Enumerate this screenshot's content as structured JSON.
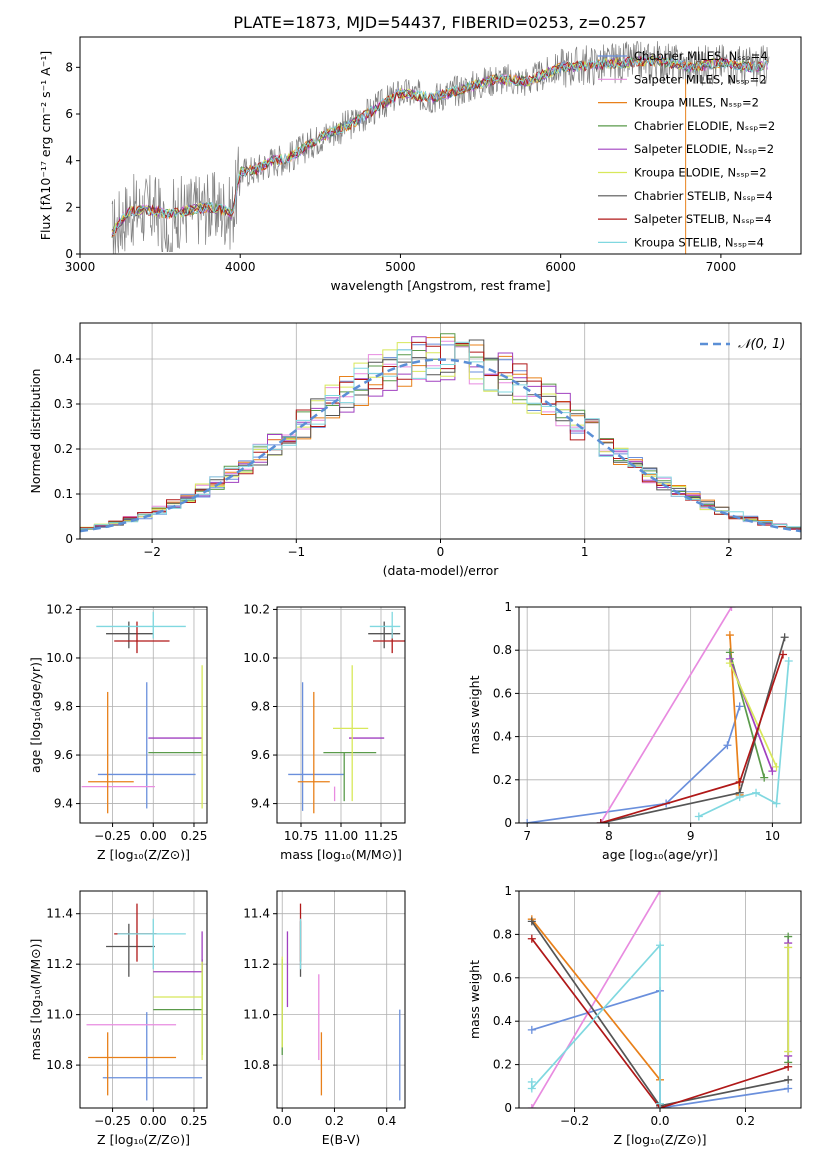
{
  "figure_title": "PLATE=1873, MJD=54437, FIBERID=0253, z=0.257",
  "colors": {
    "Chabrier MILES": "#6a8fdc",
    "Salpeter MILES": "#e88be0",
    "Kroupa MILES": "#e8801a",
    "Chabrier ELODIE": "#5a9a4a",
    "Salpeter ELODIE": "#a040c0",
    "Kroupa ELODIE": "#d8e85a",
    "Chabrier STELIB": "#555555",
    "Salpeter STELIB": "#b01818",
    "Kroupa STELIB": "#80d8e0",
    "data": "#808080",
    "normal": "#5b8fd6"
  },
  "chart_data": [
    {
      "id": "spectrum",
      "type": "line",
      "xlabel": "wavelength [Angstrom, rest frame]",
      "ylabel": "Flux [fλ10⁻¹⁷ erg cm⁻² s⁻¹ A⁻¹]",
      "xlim": [
        3000,
        7500
      ],
      "ylim": [
        0,
        9.3
      ],
      "xticks": [
        3000,
        4000,
        5000,
        6000,
        7000
      ],
      "yticks": [
        0,
        2,
        4,
        6,
        8
      ],
      "grid": false,
      "legend": "top-right",
      "continuum": {
        "x": [
          3200,
          3300,
          3400,
          3500,
          3550,
          3700,
          3800,
          3900,
          3950,
          4000,
          4100,
          4200,
          4300,
          4500,
          4700,
          5000,
          5200,
          5400,
          5600,
          5800,
          6000,
          6200,
          6400,
          6600,
          6800,
          7000,
          7200,
          7300
        ],
        "y": [
          0.9,
          1.8,
          1.9,
          1.8,
          1.7,
          1.9,
          2.0,
          1.9,
          1.7,
          3.5,
          3.6,
          4.0,
          4.1,
          5.0,
          5.6,
          6.9,
          6.7,
          7.1,
          7.5,
          7.4,
          8.0,
          8.1,
          8.2,
          8.3,
          8.0,
          8.2,
          8.0,
          8.1
        ]
      },
      "series": [
        {
          "name": "Chabrier MILES, Nₛₛₚ=4"
        },
        {
          "name": "Salpeter MILES, Nₛₛₚ=2"
        },
        {
          "name": "Kroupa MILES, Nₛₛₚ=2"
        },
        {
          "name": "Chabrier ELODIE, Nₛₛₚ=2"
        },
        {
          "name": "Salpeter ELODIE, Nₛₛₚ=2"
        },
        {
          "name": "Kroupa ELODIE, Nₛₛₚ=2"
        },
        {
          "name": "Chabrier STELIB, Nₛₛₚ=4"
        },
        {
          "name": "Salpeter STELIB, Nₛₛₚ=4"
        },
        {
          "name": "Kroupa STELIB, Nₛₛₚ=4"
        }
      ]
    },
    {
      "id": "residuals",
      "type": "line",
      "xlabel": "(data-model)/error",
      "ylabel": "Normed distribution",
      "xlim": [
        -2.5,
        2.5
      ],
      "ylim": [
        0,
        0.48
      ],
      "xticks": [
        -2,
        -1,
        0,
        1,
        2
      ],
      "yticks": [
        0.0,
        0.1,
        0.2,
        0.3,
        0.4
      ],
      "grid": true,
      "legend": "top-right",
      "normal_label": "𝒩(0, 1)",
      "normal": {
        "mean": 0,
        "sigma": 1
      }
    },
    {
      "id": "age_vs_Z",
      "type": "scatter",
      "xlabel": "Z [log₁₀(Z/Z⊙)]",
      "ylabel": "age  [log₁₀(age/yr)]",
      "xlim": [
        -0.45,
        0.33
      ],
      "ylim": [
        9.32,
        10.21
      ],
      "xticks": [
        -0.25,
        0.0,
        0.25
      ],
      "xticklabels": [
        "−0.25",
        "0.00",
        "0.25"
      ],
      "yticks": [
        9.4,
        9.6,
        9.8,
        10.0,
        10.2
      ],
      "yticklabels": [
        "9.4",
        "9.6",
        "9.8",
        "10.0",
        "10.2"
      ],
      "grid": true,
      "points": [
        {
          "series": "Chabrier MILES",
          "x": -0.04,
          "xerr": [
            0.3,
            0.3
          ],
          "y": 9.52,
          "yerr": [
            0.14,
            0.38
          ]
        },
        {
          "series": "Salpeter MILES",
          "x": -0.04,
          "xerr": [
            0.4,
            0.05
          ],
          "y": 9.47,
          "yerr": [
            0.0,
            0.0
          ]
        },
        {
          "series": "Kroupa MILES",
          "x": -0.28,
          "xerr": [
            0.12,
            0.16
          ],
          "y": 9.49,
          "yerr": [
            0.13,
            0.37
          ]
        },
        {
          "series": "Chabrier ELODIE",
          "x": 0.1,
          "xerr": [
            0.13,
            0.2
          ],
          "y": 9.61,
          "yerr": [
            0.0,
            0.0
          ]
        },
        {
          "series": "Salpeter ELODIE",
          "x": 0.15,
          "xerr": [
            0.18,
            0.15
          ],
          "y": 9.67,
          "yerr": [
            0.0,
            0.0
          ]
        },
        {
          "series": "Kroupa ELODIE",
          "x": 0.3,
          "xerr": [
            0.0,
            0.0
          ],
          "y": 9.71,
          "yerr": [
            0.33,
            0.26
          ]
        },
        {
          "series": "Chabrier STELIB",
          "x": -0.15,
          "xerr": [
            0.14,
            0.15
          ],
          "y": 10.1,
          "yerr": [
            0.06,
            0.05
          ]
        },
        {
          "series": "Salpeter STELIB",
          "x": -0.1,
          "xerr": [
            0.14,
            0.2
          ],
          "y": 10.07,
          "yerr": [
            0.05,
            0.08
          ]
        },
        {
          "series": "Kroupa STELIB",
          "x": 0.0,
          "xerr": [
            0.35,
            0.2
          ],
          "y": 10.13,
          "yerr": [
            0.05,
            0.06
          ]
        }
      ]
    },
    {
      "id": "age_vs_mass",
      "type": "scatter",
      "xlabel": "mass [log₁₀(M/M⊙)]",
      "ylabel": "",
      "xlim": [
        10.6,
        11.4
      ],
      "ylim": [
        9.32,
        10.21
      ],
      "xticks": [
        10.75,
        11.0,
        11.25
      ],
      "xticklabels": [
        "10.75",
        "11.00",
        "11.25"
      ],
      "yticks": [
        9.4,
        9.6,
        9.8,
        10.0,
        10.2
      ],
      "yticklabels": [
        "9.4",
        "9.6",
        "9.8",
        "10.0",
        "10.2"
      ],
      "grid": true,
      "points": [
        {
          "series": "Chabrier MILES",
          "x": 10.76,
          "xerr": [
            0.09,
            0.26
          ],
          "y": 9.52,
          "yerr": [
            0.15,
            0.38
          ]
        },
        {
          "series": "Salpeter MILES",
          "x": 10.96,
          "xerr": [
            0.0,
            0.0
          ],
          "y": 9.47,
          "yerr": [
            0.06,
            0.0
          ]
        },
        {
          "series": "Kroupa MILES",
          "x": 10.83,
          "xerr": [
            0.1,
            0.1
          ],
          "y": 9.49,
          "yerr": [
            0.13,
            0.37
          ]
        },
        {
          "series": "Chabrier ELODIE",
          "x": 11.02,
          "xerr": [
            0.13,
            0.2
          ],
          "y": 9.61,
          "yerr": [
            0.2,
            0.0
          ]
        },
        {
          "series": "Salpeter ELODIE",
          "x": 11.17,
          "xerr": [
            0.12,
            0.1
          ],
          "y": 9.67,
          "yerr": [
            0.0,
            0.0
          ]
        },
        {
          "series": "Kroupa ELODIE",
          "x": 11.07,
          "xerr": [
            0.12,
            0.1
          ],
          "y": 9.71,
          "yerr": [
            0.3,
            0.26
          ]
        },
        {
          "series": "Chabrier STELIB",
          "x": 11.27,
          "xerr": [
            0.1,
            0.1
          ],
          "y": 10.1,
          "yerr": [
            0.06,
            0.05
          ]
        },
        {
          "series": "Salpeter STELIB",
          "x": 11.32,
          "xerr": [
            0.12,
            0.12
          ],
          "y": 10.07,
          "yerr": [
            0.05,
            0.05
          ]
        },
        {
          "series": "Kroupa STELIB",
          "x": 11.32,
          "xerr": [
            0.14,
            0.05
          ],
          "y": 10.13,
          "yerr": [
            0.05,
            0.06
          ]
        }
      ]
    },
    {
      "id": "weight_vs_age",
      "type": "line",
      "xlabel": "age  [log₁₀(age/yr)]",
      "ylabel": "mass weight",
      "xlim": [
        6.9,
        10.35
      ],
      "ylim": [
        0,
        1
      ],
      "xticks": [
        7,
        8,
        9,
        10
      ],
      "yticks": [
        0.0,
        0.2,
        0.4,
        0.6,
        0.8,
        1.0
      ],
      "grid": true,
      "series": [
        {
          "series": "Chabrier MILES",
          "x": [
            7.0,
            8.7,
            9.45,
            9.6
          ],
          "y": [
            0.0,
            0.09,
            0.36,
            0.54
          ]
        },
        {
          "series": "Salpeter MILES",
          "x": [
            7.9,
            9.5
          ],
          "y": [
            0.0,
            1.0
          ]
        },
        {
          "series": "Kroupa MILES",
          "x": [
            9.48,
            9.6
          ],
          "y": [
            0.87,
            0.13
          ]
        },
        {
          "series": "Chabrier ELODIE",
          "x": [
            9.48,
            9.9
          ],
          "y": [
            0.79,
            0.21
          ]
        },
        {
          "series": "Salpeter ELODIE",
          "x": [
            9.48,
            10.0
          ],
          "y": [
            0.76,
            0.24
          ]
        },
        {
          "series": "Kroupa ELODIE",
          "x": [
            9.48,
            10.05
          ],
          "y": [
            0.74,
            0.26
          ]
        },
        {
          "series": "Chabrier STELIB",
          "x": [
            7.9,
            9.6,
            10.15
          ],
          "y": [
            0.0,
            0.14,
            0.86
          ]
        },
        {
          "series": "Salpeter STELIB",
          "x": [
            7.9,
            9.6,
            10.13
          ],
          "y": [
            0.0,
            0.19,
            0.78
          ]
        },
        {
          "series": "Kroupa STELIB",
          "x": [
            9.1,
            9.6,
            9.8,
            10.05,
            10.2
          ],
          "y": [
            0.03,
            0.12,
            0.14,
            0.09,
            0.75
          ]
        }
      ]
    },
    {
      "id": "mass_vs_Z",
      "type": "scatter",
      "xlabel": "Z [log₁₀(Z/Z⊙)]",
      "ylabel": "mass [log₁₀(M/M⊙)]",
      "xlim": [
        -0.45,
        0.33
      ],
      "ylim": [
        10.63,
        11.49
      ],
      "xticks": [
        -0.25,
        0.0,
        0.25
      ],
      "xticklabels": [
        "−0.25",
        "0.00",
        "0.25"
      ],
      "yticks": [
        10.8,
        11.0,
        11.2,
        11.4
      ],
      "yticklabels": [
        "10.8",
        "11.0",
        "11.2",
        "11.4"
      ],
      "grid": true,
      "points": [
        {
          "series": "Chabrier MILES",
          "x": -0.04,
          "xerr": [
            0.27,
            0.34
          ],
          "y": 10.75,
          "yerr": [
            0.09,
            0.26
          ]
        },
        {
          "series": "Salpeter MILES",
          "x": -0.15,
          "xerr": [
            0.26,
            0.29
          ],
          "y": 10.96,
          "yerr": [
            0.0,
            0.0
          ]
        },
        {
          "series": "Kroupa MILES",
          "x": -0.28,
          "xerr": [
            0.12,
            0.42
          ],
          "y": 10.83,
          "yerr": [
            0.15,
            0.1
          ]
        },
        {
          "series": "Chabrier ELODIE",
          "x": 0.3,
          "xerr": [
            0.3,
            0.0
          ],
          "y": 11.02,
          "yerr": [
            0.18,
            0.2
          ]
        },
        {
          "series": "Salpeter ELODIE",
          "x": 0.3,
          "xerr": [
            0.3,
            0.0
          ],
          "y": 11.17,
          "yerr": [
            0.0,
            0.16
          ]
        },
        {
          "series": "Kroupa ELODIE",
          "x": 0.3,
          "xerr": [
            0.3,
            0.0
          ],
          "y": 11.07,
          "yerr": [
            0.25,
            0.14
          ]
        },
        {
          "series": "Chabrier STELIB",
          "x": -0.15,
          "xerr": [
            0.14,
            0.16
          ],
          "y": 11.27,
          "yerr": [
            0.12,
            0.09
          ]
        },
        {
          "series": "Salpeter STELIB",
          "x": -0.1,
          "xerr": [
            0.14,
            0.12
          ],
          "y": 11.32,
          "yerr": [
            0.11,
            0.12
          ]
        },
        {
          "series": "Kroupa STELIB",
          "x": 0.0,
          "xerr": [
            0.22,
            0.2
          ],
          "y": 11.32,
          "yerr": [
            0.14,
            0.06
          ]
        }
      ]
    },
    {
      "id": "mass_vs_ebv",
      "type": "scatter",
      "xlabel": "E(B-V)",
      "ylabel": "",
      "xlim": [
        -0.02,
        0.47
      ],
      "ylim": [
        10.63,
        11.49
      ],
      "xticks": [
        0.0,
        0.2,
        0.4
      ],
      "xticklabels": [
        "0.0",
        "0.2",
        "0.4"
      ],
      "yticks": [
        10.8,
        11.0,
        11.2,
        11.4
      ],
      "yticklabels": [
        "10.8",
        "11.0",
        "11.2",
        "11.4"
      ],
      "grid": true,
      "points": [
        {
          "series": "Chabrier MILES",
          "x": 0.45,
          "xerr": [
            0.0,
            0.0
          ],
          "y": 10.75,
          "yerr": [
            0.09,
            0.27
          ]
        },
        {
          "series": "Salpeter MILES",
          "x": 0.14,
          "xerr": [
            0.0,
            0.0
          ],
          "y": 10.96,
          "yerr": [
            0.14,
            0.2
          ]
        },
        {
          "series": "Kroupa MILES",
          "x": 0.15,
          "xerr": [
            0.0,
            0.0
          ],
          "y": 10.83,
          "yerr": [
            0.15,
            0.1
          ]
        },
        {
          "series": "Chabrier ELODIE",
          "x": 0.0,
          "xerr": [
            0.0,
            0.0
          ],
          "y": 11.02,
          "yerr": [
            0.18,
            0.2
          ]
        },
        {
          "series": "Salpeter ELODIE",
          "x": 0.02,
          "xerr": [
            0.0,
            0.0
          ],
          "y": 11.17,
          "yerr": [
            0.14,
            0.16
          ]
        },
        {
          "series": "Kroupa ELODIE",
          "x": 0.0,
          "xerr": [
            0.0,
            0.0
          ],
          "y": 11.07,
          "yerr": [
            0.2,
            0.16
          ]
        },
        {
          "series": "Chabrier STELIB",
          "x": 0.07,
          "xerr": [
            0.0,
            0.0
          ],
          "y": 11.27,
          "yerr": [
            0.12,
            0.1
          ]
        },
        {
          "series": "Salpeter STELIB",
          "x": 0.07,
          "xerr": [
            0.0,
            0.0
          ],
          "y": 11.32,
          "yerr": [
            0.11,
            0.12
          ]
        },
        {
          "series": "Kroupa STELIB",
          "x": 0.07,
          "xerr": [
            0.0,
            0.0
          ],
          "y": 11.32,
          "yerr": [
            0.14,
            0.06
          ]
        }
      ]
    },
    {
      "id": "weight_vs_Z",
      "type": "line",
      "xlabel": "Z [log₁₀(Z/Z⊙)]",
      "ylabel": "mass weight",
      "xlim": [
        -0.33,
        0.33
      ],
      "ylim": [
        0,
        1
      ],
      "xticks": [
        -0.2,
        0.0,
        0.2
      ],
      "xticklabels": [
        "−0.2",
        "0.0",
        "0.2"
      ],
      "yticks": [
        0.0,
        0.2,
        0.4,
        0.6,
        0.8,
        1.0
      ],
      "grid": true,
      "series": [
        {
          "series": "Chabrier MILES",
          "x": [
            -0.3,
            0.0,
            0.0,
            0.3
          ],
          "y": [
            0.36,
            0.54,
            0.0,
            0.09
          ]
        },
        {
          "series": "Salpeter MILES",
          "x": [
            -0.3,
            0.0
          ],
          "y": [
            0.0,
            1.0
          ]
        },
        {
          "series": "Kroupa MILES",
          "x": [
            -0.3,
            0.0
          ],
          "y": [
            0.87,
            0.13
          ]
        },
        {
          "series": "Chabrier ELODIE",
          "x": [
            0.3,
            0.3
          ],
          "y": [
            0.79,
            0.21
          ]
        },
        {
          "series": "Salpeter ELODIE",
          "x": [
            0.3,
            0.3
          ],
          "y": [
            0.76,
            0.24
          ]
        },
        {
          "series": "Kroupa ELODIE",
          "x": [
            0.3,
            0.3
          ],
          "y": [
            0.74,
            0.26
          ]
        },
        {
          "series": "Chabrier STELIB",
          "x": [
            -0.3,
            0.0,
            0.3
          ],
          "y": [
            0.86,
            0.01,
            0.13
          ]
        },
        {
          "series": "Salpeter STELIB",
          "x": [
            -0.3,
            0.0,
            0.3
          ],
          "y": [
            0.78,
            0.0,
            0.19
          ]
        },
        {
          "series": "Kroupa STELIB",
          "x": [
            -0.3,
            -0.3,
            0.0,
            0.0
          ],
          "y": [
            0.12,
            0.09,
            0.75,
            0.02
          ]
        }
      ]
    }
  ]
}
